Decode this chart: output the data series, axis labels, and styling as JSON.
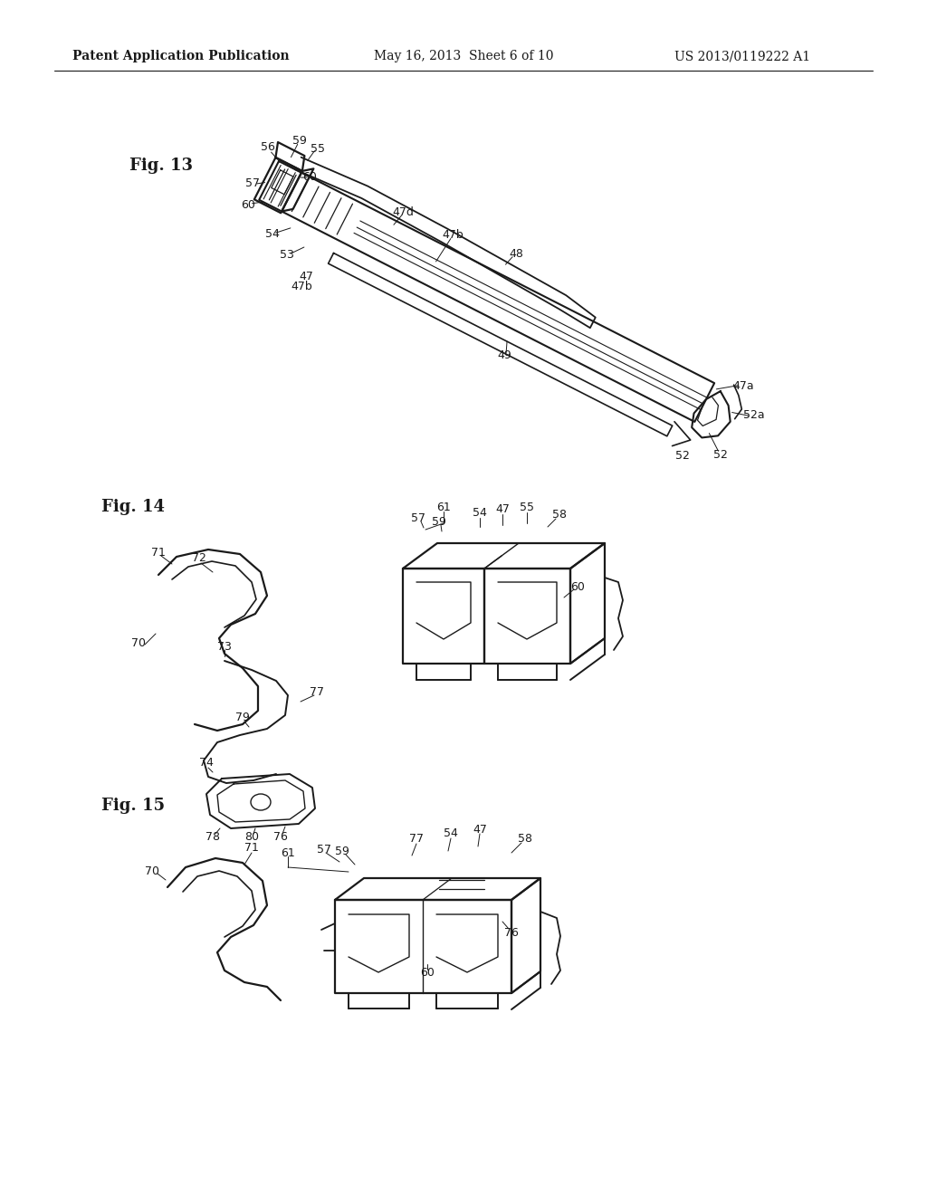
{
  "bg_color": "#ffffff",
  "header_left": "Patent Application Publication",
  "header_center": "May 16, 2013  Sheet 6 of 10",
  "header_right": "US 2013/0119222 A1",
  "fig13_label": "Fig. 13",
  "fig14_label": "Fig. 14",
  "fig15_label": "Fig. 15",
  "line_color": "#1a1a1a",
  "text_color": "#1a1a1a",
  "lw_main": 1.4,
  "lw_thin": 0.8,
  "lw_leader": 0.7,
  "fs_label": 9,
  "fs_fig": 13
}
